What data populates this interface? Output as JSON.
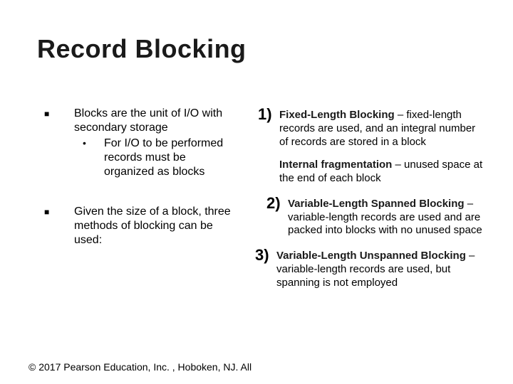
{
  "title": "Record Blocking",
  "left": {
    "item1": "Blocks are the unit of I/O with secondary storage",
    "item1_sub": "For I/O to be performed records must be organized as blocks",
    "item2": "Given the size of a block, three methods of blocking can be used:"
  },
  "right": {
    "n1_num": "1)",
    "n1_bold": "Fixed-Length Blocking",
    "n1_rest": " – fixed-length records are used, and an integral number of records are stored in a block",
    "frag_bold": "Internal fragmentation",
    "frag_rest": " – unused space at the end of each block",
    "n2_num": "2)",
    "n2_bold": "Variable-Length Spanned Blocking",
    "n2_rest": " – variable-length records are used and are packed into blocks with no unused space",
    "n3_num": "3)",
    "n3_bold": "Variable-Length Unspanned Blocking",
    "n3_rest": " – variable-length records are used, but spanning is not employed"
  },
  "footer": "© 2017 Pearson Education, Inc. , Hoboken, NJ. All"
}
